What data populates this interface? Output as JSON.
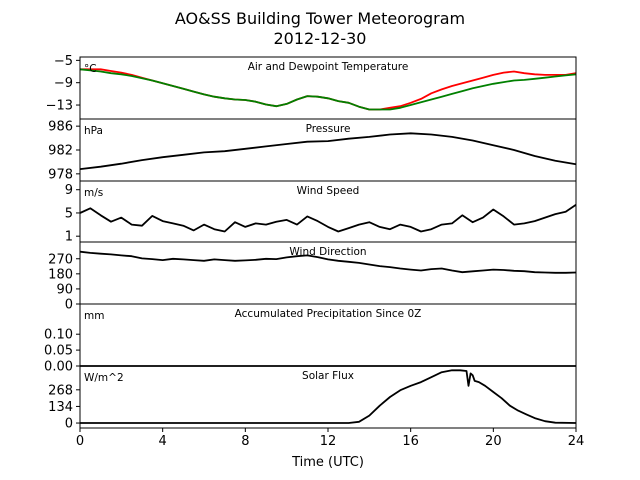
{
  "figure": {
    "title": "AO&SS Building Tower Meteorogram",
    "subtitle": "2012-12-30",
    "xlabel": "Time (UTC)",
    "x_ticks": [
      0,
      4,
      8,
      12,
      16,
      20,
      24
    ],
    "xlim": [
      0,
      24
    ]
  },
  "chart_data": [
    {
      "type": "line",
      "title": "Air and Dewpoint Temperature",
      "unit": "°C",
      "ylim": [
        -15.5,
        -4.4
      ],
      "y_ticks": [
        -5,
        -9,
        -13
      ],
      "series": [
        {
          "color": "#ff0000",
          "x": [
            0,
            0.5,
            1,
            1.5,
            2,
            2.5,
            3,
            3.5,
            4,
            4.5,
            5,
            5.5,
            6,
            6.5,
            7,
            7.5,
            8,
            8.5,
            9,
            9.5,
            10,
            10.5,
            11,
            11.5,
            12,
            12.5,
            13,
            13.5,
            14,
            14.5,
            15,
            15.5,
            16,
            16.5,
            17,
            17.5,
            18,
            18.5,
            19,
            19.5,
            20,
            20.5,
            21,
            21.5,
            22,
            22.5,
            23,
            23.5,
            24
          ],
          "values": [
            -6.6,
            -6.6,
            -6.6,
            -6.9,
            -7.2,
            -7.6,
            -8.1,
            -8.6,
            -9.1,
            -9.6,
            -10.1,
            -10.6,
            -11.1,
            -11.5,
            -11.8,
            -12.0,
            -12.1,
            -12.4,
            -12.9,
            -13.2,
            -12.8,
            -12.0,
            -11.4,
            -11.5,
            -11.8,
            -12.3,
            -12.6,
            -13.3,
            -13.8,
            -13.8,
            -13.5,
            -13.2,
            -12.6,
            -11.9,
            -10.9,
            -10.2,
            -9.6,
            -9.1,
            -8.6,
            -8.1,
            -7.6,
            -7.2,
            -7.0,
            -7.3,
            -7.5,
            -7.6,
            -7.6,
            -7.6,
            -7.3
          ]
        },
        {
          "color": "#008000",
          "x": [
            0,
            0.5,
            1,
            1.5,
            2,
            2.5,
            3,
            3.5,
            4,
            4.5,
            5,
            5.5,
            6,
            6.5,
            7,
            7.5,
            8,
            8.5,
            9,
            9.5,
            10,
            10.5,
            11,
            11.5,
            12,
            12.5,
            13,
            13.5,
            14,
            14.5,
            15,
            15.5,
            16,
            16.5,
            17,
            17.5,
            18,
            18.5,
            19,
            19.5,
            20,
            20.5,
            21,
            21.5,
            22,
            22.5,
            23,
            23.5,
            24
          ],
          "values": [
            -6.6,
            -6.8,
            -7.0,
            -7.3,
            -7.5,
            -7.8,
            -8.2,
            -8.6,
            -9.1,
            -9.6,
            -10.1,
            -10.6,
            -11.1,
            -11.5,
            -11.8,
            -12.0,
            -12.1,
            -12.4,
            -12.9,
            -13.2,
            -12.8,
            -12.0,
            -11.4,
            -11.5,
            -11.8,
            -12.3,
            -12.6,
            -13.3,
            -13.8,
            -13.8,
            -13.8,
            -13.5,
            -13.0,
            -12.5,
            -12.0,
            -11.5,
            -11.0,
            -10.5,
            -10.0,
            -9.6,
            -9.2,
            -8.9,
            -8.6,
            -8.5,
            -8.3,
            -8.1,
            -7.9,
            -7.7,
            -7.5
          ]
        }
      ]
    },
    {
      "type": "line",
      "title": "Pressure",
      "unit": "hPa",
      "ylim": [
        976.8,
        987.2
      ],
      "y_ticks": [
        986,
        982,
        978
      ],
      "series": [
        {
          "color": "#000000",
          "x": [
            0,
            1,
            2,
            3,
            4,
            5,
            6,
            7,
            8,
            9,
            10,
            11,
            12,
            13,
            14,
            15,
            16,
            17,
            18,
            19,
            20,
            21,
            22,
            23,
            24
          ],
          "values": [
            978.8,
            979.2,
            979.7,
            980.3,
            980.8,
            981.2,
            981.6,
            981.8,
            982.2,
            982.6,
            983.0,
            983.4,
            983.5,
            983.9,
            984.2,
            984.6,
            984.8,
            984.6,
            984.2,
            983.6,
            982.8,
            982.0,
            981.0,
            980.2,
            979.6
          ]
        }
      ]
    },
    {
      "type": "line",
      "title": "Wind Speed",
      "unit": "m/s",
      "ylim": [
        0,
        10.5
      ],
      "y_ticks": [
        9,
        5,
        1
      ],
      "series": [
        {
          "color": "#000000",
          "x": [
            0,
            0.5,
            1,
            1.5,
            2,
            2.5,
            3,
            3.5,
            4,
            4.5,
            5,
            5.5,
            6,
            6.5,
            7,
            7.5,
            8,
            8.5,
            9,
            9.5,
            10,
            10.5,
            11,
            11.5,
            12,
            12.5,
            13,
            13.5,
            14,
            14.5,
            15,
            15.5,
            16,
            16.5,
            17,
            17.5,
            18,
            18.5,
            19,
            19.5,
            20,
            20.5,
            21,
            21.5,
            22,
            22.5,
            23,
            23.5,
            24
          ],
          "values": [
            5.0,
            5.8,
            4.6,
            3.5,
            4.2,
            3.0,
            2.8,
            4.5,
            3.6,
            3.2,
            2.8,
            2.0,
            3.0,
            2.2,
            1.8,
            3.4,
            2.6,
            3.2,
            3.0,
            3.5,
            3.8,
            3.0,
            4.4,
            3.6,
            2.6,
            1.8,
            2.4,
            3.0,
            3.4,
            2.6,
            2.2,
            3.0,
            2.6,
            1.8,
            2.2,
            3.0,
            3.2,
            4.6,
            3.4,
            4.2,
            5.6,
            4.4,
            3.0,
            3.2,
            3.6,
            4.2,
            4.8,
            5.2,
            6.4
          ]
        }
      ]
    },
    {
      "type": "line",
      "title": "Wind Direction",
      "unit": "",
      "ylim": [
        0,
        370
      ],
      "y_ticks": [
        270,
        180,
        90,
        0
      ],
      "series": [
        {
          "color": "#000000",
          "x": [
            0,
            0.5,
            1,
            1.5,
            2,
            2.5,
            3,
            3.5,
            4,
            4.5,
            5,
            5.5,
            6,
            6.5,
            7,
            7.5,
            8,
            8.5,
            9,
            9.5,
            10,
            10.5,
            11,
            11.5,
            12,
            12.5,
            13,
            13.5,
            14,
            14.5,
            15,
            15.5,
            16,
            16.5,
            17,
            17.5,
            18,
            18.5,
            19,
            19.5,
            20,
            20.5,
            21,
            21.5,
            22,
            22.5,
            23,
            23.5,
            24
          ],
          "values": [
            312,
            305,
            300,
            296,
            290,
            285,
            272,
            268,
            262,
            270,
            266,
            262,
            258,
            266,
            262,
            258,
            260,
            264,
            270,
            268,
            278,
            285,
            290,
            280,
            266,
            258,
            252,
            245,
            236,
            226,
            220,
            212,
            205,
            200,
            208,
            212,
            200,
            190,
            195,
            200,
            205,
            203,
            198,
            196,
            190,
            188,
            186,
            186,
            188
          ]
        }
      ]
    },
    {
      "type": "line",
      "title": "Accumulated Precipitation Since 0Z",
      "unit": "mm",
      "ylim": [
        0,
        0.195
      ],
      "y_ticks": [
        0.1,
        0.05,
        0.0
      ],
      "y_tick_labels": [
        "0.10",
        "0.05",
        "0.00"
      ],
      "series": [
        {
          "color": "#000000",
          "x": [
            0,
            24
          ],
          "values": [
            0.0,
            0.0
          ]
        }
      ]
    },
    {
      "type": "line",
      "title": "Solar Flux",
      "unit": "W/m^2",
      "ylim": [
        -40,
        460
      ],
      "y_ticks": [
        268,
        134,
        0
      ],
      "series": [
        {
          "color": "#000000",
          "x": [
            0,
            13,
            13.5,
            14,
            14.5,
            15,
            15.5,
            16,
            16.5,
            17,
            17.5,
            18,
            18.4,
            18.7,
            18.8,
            18.9,
            19.0,
            19.1,
            19.3,
            19.6,
            20,
            20.4,
            20.8,
            21.2,
            21.6,
            22,
            22.5,
            23,
            24
          ],
          "values": [
            0,
            0,
            10,
            60,
            140,
            210,
            265,
            300,
            330,
            370,
            410,
            425,
            425,
            420,
            300,
            400,
            385,
            340,
            330,
            300,
            250,
            200,
            140,
            100,
            70,
            40,
            15,
            3,
            0
          ]
        }
      ]
    }
  ]
}
